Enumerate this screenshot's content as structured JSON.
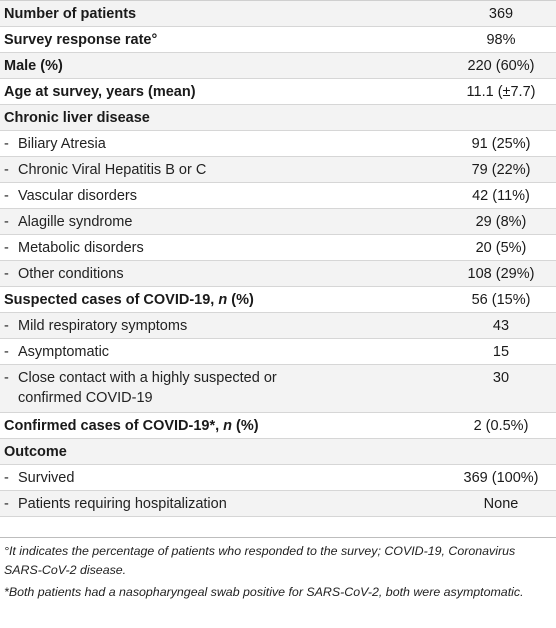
{
  "rows": [
    {
      "label": "Number of patients",
      "value": "369",
      "bold": true,
      "shaded": true,
      "indent": false
    },
    {
      "label": "Survey response rate°",
      "value": "98%",
      "bold": true,
      "shaded": false,
      "indent": false
    },
    {
      "label": "Male (%)",
      "value": "220 (60%)",
      "bold": true,
      "shaded": true,
      "indent": false
    },
    {
      "label": "Age at survey, years (mean)",
      "value": "11.1 (±7.7)",
      "bold": true,
      "shaded": false,
      "indent": false
    },
    {
      "label": "Chronic liver disease",
      "value": "",
      "bold": true,
      "shaded": true,
      "indent": false
    },
    {
      "label": "Biliary Atresia",
      "value": "91 (25%)",
      "bold": false,
      "shaded": false,
      "indent": true
    },
    {
      "label": "Chronic Viral Hepatitis B or C",
      "value": "79 (22%)",
      "bold": false,
      "shaded": true,
      "indent": true
    },
    {
      "label": "Vascular disorders",
      "value": "42 (11%)",
      "bold": false,
      "shaded": false,
      "indent": true
    },
    {
      "label": "Alagille syndrome",
      "value": "29 (8%)",
      "bold": false,
      "shaded": true,
      "indent": true
    },
    {
      "label": "Metabolic disorders",
      "value": "20 (5%)",
      "bold": false,
      "shaded": false,
      "indent": true
    },
    {
      "label": "Other conditions",
      "value": "108 (29%)",
      "bold": false,
      "shaded": true,
      "indent": true
    },
    {
      "label": "Suspected cases of COVID-19, ",
      "label_italic": "n",
      "label_suffix": " (%)",
      "value": "56 (15%)",
      "bold": true,
      "shaded": false,
      "indent": false
    },
    {
      "label": "Mild respiratory symptoms",
      "value": "43",
      "bold": false,
      "shaded": true,
      "indent": true
    },
    {
      "label": "Asymptomatic",
      "value": "15",
      "bold": false,
      "shaded": false,
      "indent": true
    },
    {
      "label": "Close contact with a highly suspected or confirmed COVID-19",
      "value": "30",
      "bold": false,
      "shaded": true,
      "indent": true,
      "tall": true
    },
    {
      "label": "Confirmed cases of COVID-19*, ",
      "label_italic": "n",
      "label_suffix": " (%)",
      "value": "2 (0.5%)",
      "bold": true,
      "shaded": false,
      "indent": false
    },
    {
      "label": "Outcome",
      "value": "",
      "bold": true,
      "shaded": true,
      "indent": false
    },
    {
      "label": "Survived",
      "value": "369 (100%)",
      "bold": false,
      "shaded": false,
      "indent": true
    },
    {
      "label": "Patients requiring hospitalization",
      "value": "None",
      "bold": false,
      "shaded": true,
      "indent": true
    }
  ],
  "dash": "-",
  "notes": {
    "note1": "°It indicates the percentage of patients who responded to the survey; COVID-19, Coronavirus SARS-CoV-2 disease.",
    "note2": "*Both patients had a nasopharyngeal swab positive for SARS-CoV-2, both were asymptomatic."
  }
}
